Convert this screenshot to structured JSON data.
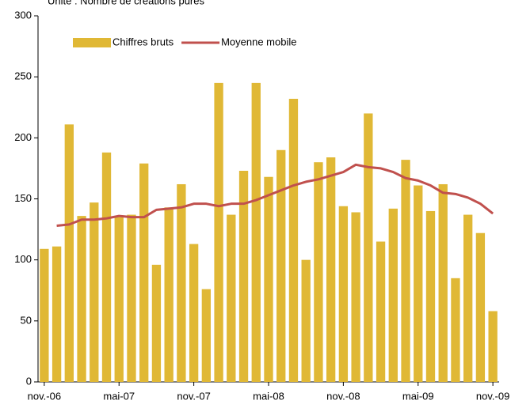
{
  "chart_data": {
    "type": "bar",
    "subtitle": "Unité : Nombre de créations pures",
    "categories": [
      "nov.-06",
      null,
      null,
      null,
      null,
      null,
      "mai-07",
      null,
      null,
      null,
      null,
      null,
      "nov.-07",
      null,
      null,
      null,
      null,
      null,
      "mai-08",
      null,
      null,
      null,
      null,
      null,
      "nov.-08",
      null,
      null,
      null,
      null,
      null,
      "mai-09",
      null,
      null,
      null,
      null,
      null,
      "nov.-09"
    ],
    "series": [
      {
        "name": "Chiffres bruts",
        "type": "bar",
        "color": "#e0b835",
        "values": [
          109,
          111,
          211,
          136,
          147,
          188,
          135,
          137,
          179,
          96,
          143,
          162,
          113,
          76,
          245,
          137,
          173,
          245,
          168,
          190,
          232,
          100,
          180,
          184,
          144,
          139,
          220,
          115,
          142,
          182,
          161,
          140,
          162,
          85,
          137,
          122,
          58
        ]
      },
      {
        "name": "Moyenne mobile",
        "type": "line",
        "color": "#c0504d",
        "values": [
          null,
          128,
          129,
          133,
          133,
          134,
          136,
          135,
          135,
          141,
          142,
          143,
          146,
          146,
          144,
          146,
          146,
          149,
          153,
          157,
          161,
          164,
          166,
          169,
          172,
          178,
          176,
          175,
          172,
          167,
          165,
          161,
          155,
          154,
          151,
          146,
          138
        ]
      }
    ],
    "ylim": [
      0,
      300
    ],
    "yticks": [
      0,
      50,
      100,
      150,
      200,
      250,
      300
    ],
    "grid": false,
    "legend": "top-left"
  }
}
